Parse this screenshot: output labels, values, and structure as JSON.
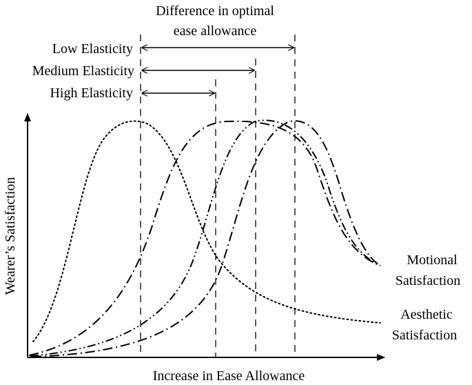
{
  "header": {
    "line1": "Difference in optimal",
    "line2": "ease allowance"
  },
  "arrows": [
    {
      "label": "Low Elasticity"
    },
    {
      "label": "Medium Elasticity"
    },
    {
      "label": "High Elasticity"
    }
  ],
  "axes": {
    "x_label": "Increase in Ease Allowance",
    "y_label": "Wearer’s Satisfaction"
  },
  "legend_labels": {
    "motional_line1": "Motional",
    "motional_line2": "Satisfaction",
    "aesthetic_line1": "Aesthetic",
    "aesthetic_line2": "Satisfaction"
  },
  "curves": [
    {
      "id": "aesthetic",
      "style": "dotted"
    },
    {
      "id": "motional-high-elasticity",
      "style": "dash-dot"
    },
    {
      "id": "motional-medium-elasticity",
      "style": "dash-dot-dot"
    },
    {
      "id": "motional-low-elasticity",
      "style": "dash-dot"
    }
  ],
  "colors": {
    "line": "#000000",
    "background": "#ffffff"
  }
}
